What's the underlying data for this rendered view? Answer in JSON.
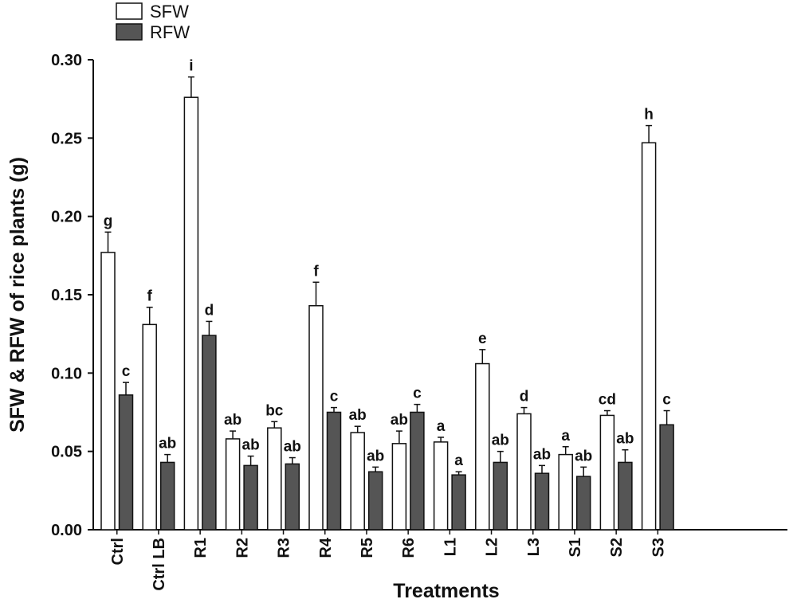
{
  "chart_data": {
    "type": "bar",
    "title": "",
    "xlabel": "Treatments",
    "ylabel": "SFW & RFW of rice plants (g)",
    "ylim": [
      0,
      0.3
    ],
    "yticks": [
      "0.00",
      "0.05",
      "0.10",
      "0.15",
      "0.20",
      "0.25",
      "0.30"
    ],
    "categories": [
      "Ctrl",
      "Ctrl LB",
      "R1",
      "R2",
      "R3",
      "R4",
      "R5",
      "R6",
      "L1",
      "L2",
      "L3",
      "S1",
      "S2",
      "S3"
    ],
    "legend": {
      "position": "top-left"
    },
    "series": [
      {
        "name": "SFW",
        "color": "#ffffff",
        "values": [
          0.177,
          0.131,
          0.276,
          0.058,
          0.065,
          0.143,
          0.062,
          0.055,
          0.056,
          0.106,
          0.074,
          0.048,
          0.073,
          0.247
        ],
        "errors": [
          0.013,
          0.011,
          0.013,
          0.005,
          0.004,
          0.015,
          0.004,
          0.008,
          0.003,
          0.009,
          0.004,
          0.005,
          0.003,
          0.011
        ],
        "letters": [
          "g",
          "f",
          "i",
          "ab",
          "bc",
          "f",
          "ab",
          "ab",
          "a",
          "e",
          "d",
          "a",
          "cd",
          "h"
        ]
      },
      {
        "name": "RFW",
        "color": "#555555",
        "values": [
          0.086,
          0.043,
          0.124,
          0.041,
          0.042,
          0.075,
          0.037,
          0.075,
          0.035,
          0.043,
          0.036,
          0.034,
          0.043,
          0.067
        ],
        "errors": [
          0.008,
          0.005,
          0.009,
          0.006,
          0.004,
          0.003,
          0.003,
          0.005,
          0.002,
          0.007,
          0.005,
          0.006,
          0.008,
          0.009
        ],
        "letters": [
          "c",
          "ab",
          "d",
          "ab",
          "ab",
          "c",
          "ab",
          "c",
          "a",
          "ab",
          "ab",
          "ab",
          "ab",
          "c"
        ]
      }
    ]
  }
}
